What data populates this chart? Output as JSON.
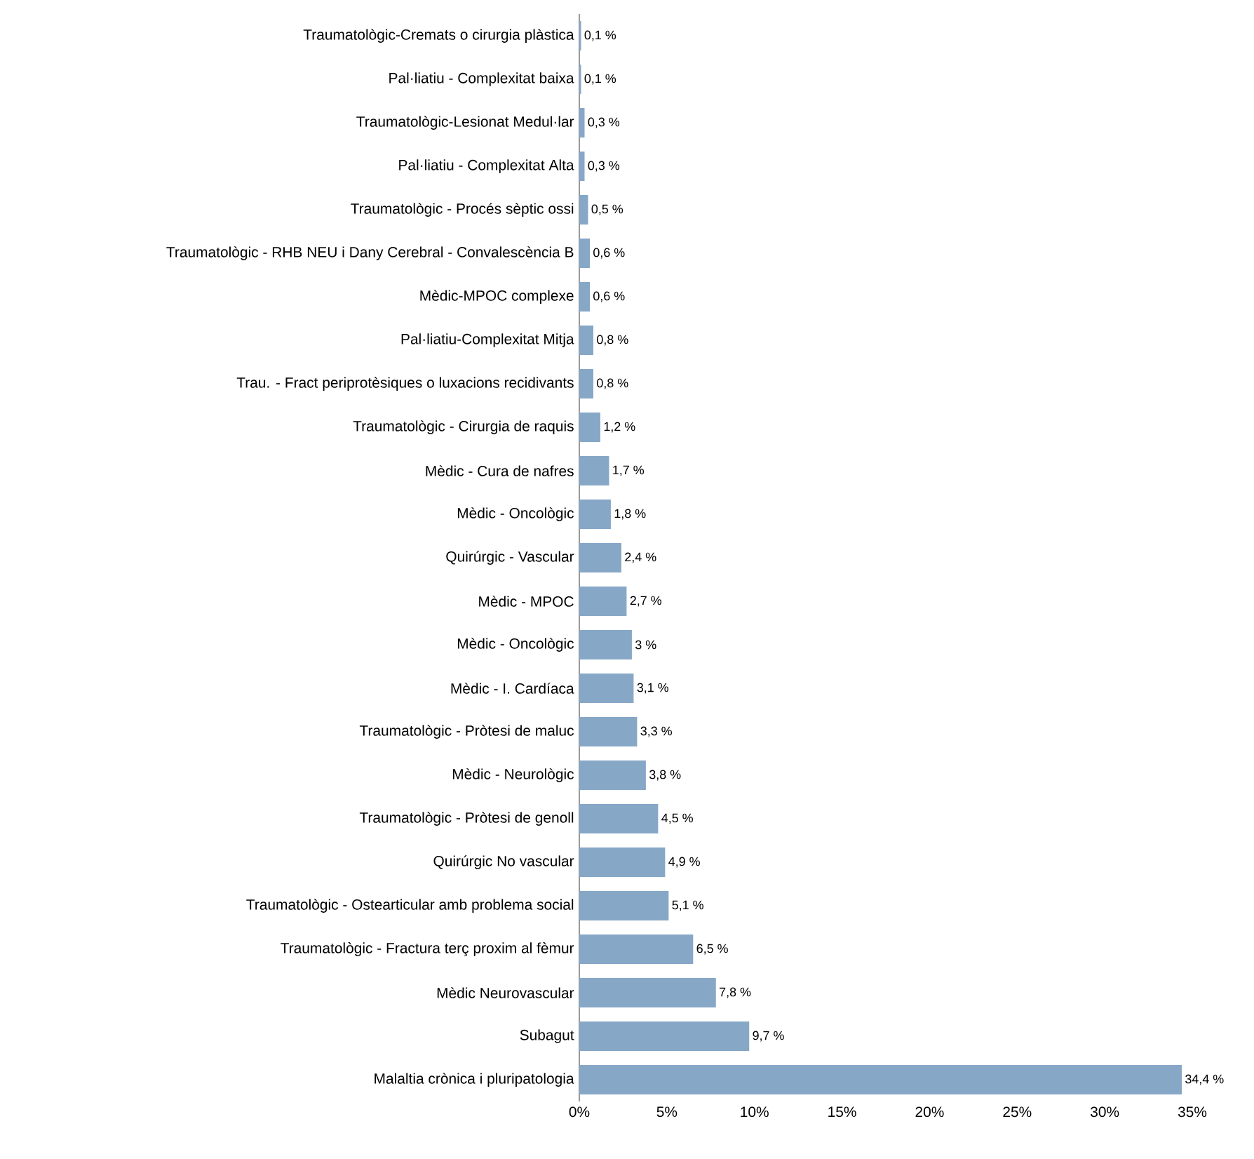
{
  "chart_data": {
    "type": "bar",
    "orientation": "horizontal",
    "color": "#87a7c7",
    "categories": [
      "Traumatològic-Cremats o cirurgia plàstica",
      "Pal·liatiu - Complexitat baixa",
      "Traumatològic-Lesionat Medul·lar",
      "Pal·liatiu - Complexitat Alta",
      "Traumatològic - Procés sèptic ossi",
      "Traumatològic - RHB NEU i Dany Cerebral - Convalescència B",
      "Mèdic-MPOC complexe",
      "Pal·liatiu-Complexitat Mitja",
      "Trau. - Fract periprotèsiques o luxacions recidivants",
      "Traumatològic - Cirurgia de raquis",
      "Mèdic - Cura de nafres",
      "Mèdic - Oncològic",
      "Quirúrgic - Vascular",
      "Mèdic - MPOC",
      "Mèdic - Oncològic",
      "Mèdic - I. Cardíaca",
      "Traumatològic - Pròtesi de maluc",
      "Mèdic - Neurològic",
      "Traumatològic - Pròtesi de genoll",
      "Quirúrgic No vascular",
      "Traumatològic - Ostearticular amb problema social",
      "Traumatològic - Fractura terç proxim al fèmur",
      "Mèdic Neurovascular",
      "Subagut",
      "Malaltia crònica i pluripatologia"
    ],
    "values": [
      0.1,
      0.1,
      0.3,
      0.3,
      0.5,
      0.6,
      0.6,
      0.8,
      0.8,
      1.2,
      1.7,
      1.8,
      2.4,
      2.7,
      3,
      3.1,
      3.3,
      3.8,
      4.5,
      4.9,
      5.1,
      6.5,
      7.8,
      9.7,
      34.4
    ],
    "value_labels": [
      "0,1 %",
      "0,1 %",
      "0,3 %",
      "0,3 %",
      "0,5 %",
      "0,6 %",
      "0,6 %",
      "0,8 %",
      "0,8 %",
      "1,2 %",
      "1,7 %",
      "1,8 %",
      "2,4 %",
      "2,7 %",
      "3 %",
      "3,1 %",
      "3,3 %",
      "3,8 %",
      "4,5 %",
      "4,9 %",
      "5,1 %",
      "6,5 %",
      "7,8 %",
      "9,7 %",
      "34,4 %"
    ],
    "xlim": [
      0,
      35
    ],
    "xticks": [
      {
        "value": 0,
        "label": "0%"
      },
      {
        "value": 5,
        "label": "5%"
      },
      {
        "value": 10,
        "label": "10%"
      },
      {
        "value": 15,
        "label": "15%"
      },
      {
        "value": 20,
        "label": "20%"
      },
      {
        "value": 25,
        "label": "25%"
      },
      {
        "value": 30,
        "label": "30%"
      },
      {
        "value": 35,
        "label": "35%"
      }
    ],
    "grid": false
  }
}
